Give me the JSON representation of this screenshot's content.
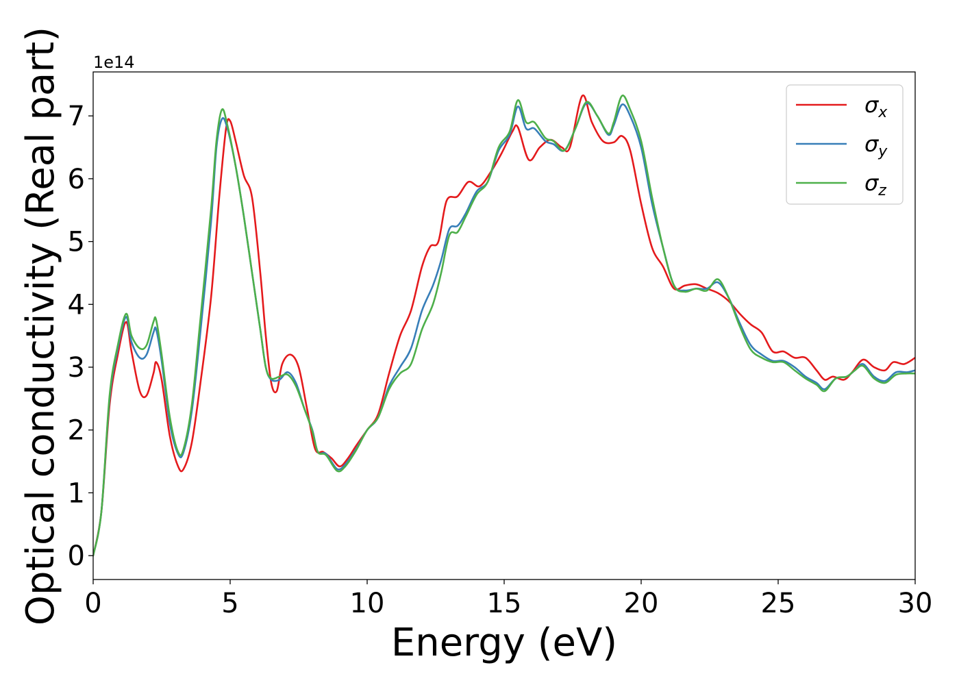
{
  "chart_data": {
    "type": "line",
    "xlabel": "Energy (eV)",
    "ylabel": "Optical conductivity (Real part)",
    "y_offset_text": "1e14",
    "y_scale_note": "values in units of 1e14",
    "xlim": [
      0,
      30
    ],
    "ylim": [
      -0.38,
      7.7
    ],
    "xticks": [
      0,
      5,
      10,
      15,
      20,
      25,
      30
    ],
    "yticks": [
      0,
      1,
      2,
      3,
      4,
      5,
      6,
      7
    ],
    "grid": false,
    "legend_position": "top-right",
    "series": [
      {
        "name": "σx",
        "symbol": "σ",
        "subscript": "x",
        "color": "#e41a1c",
        "points": [
          [
            0,
            0
          ],
          [
            0.3,
            0.7
          ],
          [
            0.6,
            2.4
          ],
          [
            0.9,
            3.2
          ],
          [
            1.2,
            3.72
          ],
          [
            1.4,
            3.25
          ],
          [
            1.7,
            2.62
          ],
          [
            1.95,
            2.55
          ],
          [
            2.2,
            2.9
          ],
          [
            2.3,
            3.08
          ],
          [
            2.5,
            2.8
          ],
          [
            2.8,
            1.9
          ],
          [
            3.1,
            1.42
          ],
          [
            3.3,
            1.38
          ],
          [
            3.6,
            1.8
          ],
          [
            3.9,
            2.7
          ],
          [
            4.3,
            4.1
          ],
          [
            4.6,
            5.7
          ],
          [
            4.85,
            6.8
          ],
          [
            5.0,
            6.92
          ],
          [
            5.2,
            6.6
          ],
          [
            5.5,
            6.05
          ],
          [
            5.8,
            5.7
          ],
          [
            6.1,
            4.5
          ],
          [
            6.3,
            3.5
          ],
          [
            6.5,
            2.75
          ],
          [
            6.7,
            2.62
          ],
          [
            6.9,
            3.05
          ],
          [
            7.2,
            3.2
          ],
          [
            7.5,
            3.0
          ],
          [
            7.8,
            2.35
          ],
          [
            8.1,
            1.7
          ],
          [
            8.4,
            1.65
          ],
          [
            8.7,
            1.55
          ],
          [
            9.0,
            1.42
          ],
          [
            9.3,
            1.55
          ],
          [
            9.6,
            1.75
          ],
          [
            10.0,
            2.0
          ],
          [
            10.4,
            2.25
          ],
          [
            10.8,
            2.9
          ],
          [
            11.2,
            3.5
          ],
          [
            11.6,
            3.9
          ],
          [
            12.0,
            4.6
          ],
          [
            12.3,
            4.92
          ],
          [
            12.6,
            5.0
          ],
          [
            12.9,
            5.65
          ],
          [
            13.3,
            5.72
          ],
          [
            13.7,
            5.95
          ],
          [
            14.1,
            5.88
          ],
          [
            14.5,
            6.1
          ],
          [
            14.9,
            6.4
          ],
          [
            15.3,
            6.75
          ],
          [
            15.5,
            6.82
          ],
          [
            15.9,
            6.3
          ],
          [
            16.3,
            6.5
          ],
          [
            16.7,
            6.62
          ],
          [
            17.1,
            6.5
          ],
          [
            17.4,
            6.5
          ],
          [
            17.85,
            7.32
          ],
          [
            18.2,
            6.9
          ],
          [
            18.6,
            6.6
          ],
          [
            19.0,
            6.58
          ],
          [
            19.3,
            6.68
          ],
          [
            19.6,
            6.45
          ],
          [
            20.0,
            5.6
          ],
          [
            20.4,
            4.9
          ],
          [
            20.8,
            4.6
          ],
          [
            21.2,
            4.25
          ],
          [
            21.6,
            4.3
          ],
          [
            22.0,
            4.32
          ],
          [
            22.4,
            4.25
          ],
          [
            22.8,
            4.18
          ],
          [
            23.2,
            4.05
          ],
          [
            23.6,
            3.85
          ],
          [
            24.0,
            3.68
          ],
          [
            24.4,
            3.55
          ],
          [
            24.8,
            3.25
          ],
          [
            25.2,
            3.25
          ],
          [
            25.6,
            3.15
          ],
          [
            26.0,
            3.15
          ],
          [
            26.4,
            2.95
          ],
          [
            26.7,
            2.8
          ],
          [
            27.0,
            2.85
          ],
          [
            27.4,
            2.8
          ],
          [
            27.7,
            2.92
          ],
          [
            28.1,
            3.12
          ],
          [
            28.5,
            3.0
          ],
          [
            28.9,
            2.95
          ],
          [
            29.2,
            3.08
          ],
          [
            29.6,
            3.05
          ],
          [
            30.0,
            3.15
          ]
        ]
      },
      {
        "name": "σy",
        "symbol": "σ",
        "subscript": "y",
        "color": "#377eb8",
        "points": [
          [
            0,
            0
          ],
          [
            0.3,
            0.7
          ],
          [
            0.6,
            2.5
          ],
          [
            0.9,
            3.3
          ],
          [
            1.2,
            3.8
          ],
          [
            1.4,
            3.4
          ],
          [
            1.7,
            3.15
          ],
          [
            1.95,
            3.2
          ],
          [
            2.2,
            3.55
          ],
          [
            2.3,
            3.6
          ],
          [
            2.5,
            3.1
          ],
          [
            2.8,
            2.1
          ],
          [
            3.1,
            1.62
          ],
          [
            3.3,
            1.65
          ],
          [
            3.6,
            2.3
          ],
          [
            3.9,
            3.5
          ],
          [
            4.3,
            5.3
          ],
          [
            4.5,
            6.5
          ],
          [
            4.7,
            6.95
          ],
          [
            4.9,
            6.8
          ],
          [
            5.2,
            6.2
          ],
          [
            5.5,
            5.4
          ],
          [
            5.8,
            4.5
          ],
          [
            6.1,
            3.6
          ],
          [
            6.3,
            3.0
          ],
          [
            6.5,
            2.8
          ],
          [
            6.8,
            2.8
          ],
          [
            7.1,
            2.92
          ],
          [
            7.4,
            2.75
          ],
          [
            7.7,
            2.35
          ],
          [
            8.0,
            2.0
          ],
          [
            8.2,
            1.65
          ],
          [
            8.5,
            1.62
          ],
          [
            8.9,
            1.38
          ],
          [
            9.2,
            1.45
          ],
          [
            9.6,
            1.7
          ],
          [
            10.0,
            2.0
          ],
          [
            10.4,
            2.2
          ],
          [
            10.8,
            2.7
          ],
          [
            11.2,
            3.0
          ],
          [
            11.6,
            3.3
          ],
          [
            12.0,
            3.9
          ],
          [
            12.4,
            4.3
          ],
          [
            12.7,
            4.7
          ],
          [
            13.0,
            5.2
          ],
          [
            13.3,
            5.25
          ],
          [
            13.6,
            5.45
          ],
          [
            14.0,
            5.8
          ],
          [
            14.4,
            5.95
          ],
          [
            14.8,
            6.45
          ],
          [
            15.2,
            6.7
          ],
          [
            15.5,
            7.15
          ],
          [
            15.8,
            6.8
          ],
          [
            16.1,
            6.8
          ],
          [
            16.5,
            6.6
          ],
          [
            16.8,
            6.55
          ],
          [
            17.2,
            6.45
          ],
          [
            17.6,
            6.8
          ],
          [
            18.0,
            7.2
          ],
          [
            18.4,
            7.0
          ],
          [
            18.8,
            6.7
          ],
          [
            19.0,
            6.85
          ],
          [
            19.3,
            7.18
          ],
          [
            19.6,
            7.0
          ],
          [
            20.0,
            6.5
          ],
          [
            20.4,
            5.6
          ],
          [
            20.8,
            4.9
          ],
          [
            21.2,
            4.3
          ],
          [
            21.6,
            4.22
          ],
          [
            22.0,
            4.25
          ],
          [
            22.4,
            4.25
          ],
          [
            22.8,
            4.35
          ],
          [
            23.2,
            4.1
          ],
          [
            23.6,
            3.7
          ],
          [
            24.0,
            3.35
          ],
          [
            24.4,
            3.2
          ],
          [
            24.8,
            3.1
          ],
          [
            25.2,
            3.1
          ],
          [
            25.6,
            3.0
          ],
          [
            26.0,
            2.85
          ],
          [
            26.4,
            2.75
          ],
          [
            26.7,
            2.65
          ],
          [
            27.1,
            2.82
          ],
          [
            27.5,
            2.85
          ],
          [
            27.8,
            2.95
          ],
          [
            28.1,
            3.05
          ],
          [
            28.5,
            2.85
          ],
          [
            28.9,
            2.78
          ],
          [
            29.3,
            2.92
          ],
          [
            29.7,
            2.92
          ],
          [
            30.0,
            2.95
          ]
        ]
      },
      {
        "name": "σz",
        "symbol": "σ",
        "subscript": "z",
        "color": "#4daf4a",
        "points": [
          [
            0,
            0
          ],
          [
            0.3,
            0.7
          ],
          [
            0.6,
            2.55
          ],
          [
            0.9,
            3.35
          ],
          [
            1.2,
            3.85
          ],
          [
            1.4,
            3.5
          ],
          [
            1.7,
            3.3
          ],
          [
            1.95,
            3.35
          ],
          [
            2.2,
            3.72
          ],
          [
            2.3,
            3.75
          ],
          [
            2.5,
            3.2
          ],
          [
            2.8,
            2.2
          ],
          [
            3.1,
            1.65
          ],
          [
            3.3,
            1.7
          ],
          [
            3.6,
            2.4
          ],
          [
            3.9,
            3.7
          ],
          [
            4.3,
            5.5
          ],
          [
            4.5,
            6.6
          ],
          [
            4.7,
            7.1
          ],
          [
            4.9,
            6.85
          ],
          [
            5.2,
            6.2
          ],
          [
            5.5,
            5.4
          ],
          [
            5.8,
            4.5
          ],
          [
            6.1,
            3.6
          ],
          [
            6.3,
            3.0
          ],
          [
            6.5,
            2.82
          ],
          [
            6.8,
            2.85
          ],
          [
            7.1,
            2.88
          ],
          [
            7.4,
            2.7
          ],
          [
            7.7,
            2.35
          ],
          [
            8.0,
            1.98
          ],
          [
            8.2,
            1.65
          ],
          [
            8.5,
            1.6
          ],
          [
            8.9,
            1.35
          ],
          [
            9.2,
            1.42
          ],
          [
            9.6,
            1.68
          ],
          [
            10.0,
            2.0
          ],
          [
            10.4,
            2.2
          ],
          [
            10.8,
            2.65
          ],
          [
            11.2,
            2.9
          ],
          [
            11.6,
            3.05
          ],
          [
            12.0,
            3.6
          ],
          [
            12.4,
            4.0
          ],
          [
            12.7,
            4.5
          ],
          [
            13.0,
            5.1
          ],
          [
            13.3,
            5.15
          ],
          [
            13.6,
            5.4
          ],
          [
            14.0,
            5.75
          ],
          [
            14.4,
            5.95
          ],
          [
            14.8,
            6.5
          ],
          [
            15.2,
            6.75
          ],
          [
            15.5,
            7.25
          ],
          [
            15.8,
            6.9
          ],
          [
            16.1,
            6.9
          ],
          [
            16.5,
            6.65
          ],
          [
            16.8,
            6.6
          ],
          [
            17.2,
            6.45
          ],
          [
            17.6,
            6.8
          ],
          [
            18.0,
            7.22
          ],
          [
            18.4,
            7.0
          ],
          [
            18.8,
            6.72
          ],
          [
            19.0,
            6.9
          ],
          [
            19.3,
            7.32
          ],
          [
            19.6,
            7.1
          ],
          [
            20.0,
            6.6
          ],
          [
            20.4,
            5.7
          ],
          [
            20.8,
            4.9
          ],
          [
            21.2,
            4.3
          ],
          [
            21.6,
            4.2
          ],
          [
            22.0,
            4.25
          ],
          [
            22.4,
            4.22
          ],
          [
            22.8,
            4.4
          ],
          [
            23.2,
            4.1
          ],
          [
            23.6,
            3.65
          ],
          [
            24.0,
            3.28
          ],
          [
            24.4,
            3.15
          ],
          [
            24.8,
            3.08
          ],
          [
            25.2,
            3.08
          ],
          [
            25.6,
            2.95
          ],
          [
            26.0,
            2.82
          ],
          [
            26.4,
            2.72
          ],
          [
            26.7,
            2.62
          ],
          [
            27.1,
            2.82
          ],
          [
            27.5,
            2.85
          ],
          [
            27.8,
            2.95
          ],
          [
            28.1,
            3.02
          ],
          [
            28.5,
            2.82
          ],
          [
            28.9,
            2.75
          ],
          [
            29.3,
            2.88
          ],
          [
            29.7,
            2.9
          ],
          [
            30.0,
            2.9
          ]
        ]
      }
    ]
  }
}
